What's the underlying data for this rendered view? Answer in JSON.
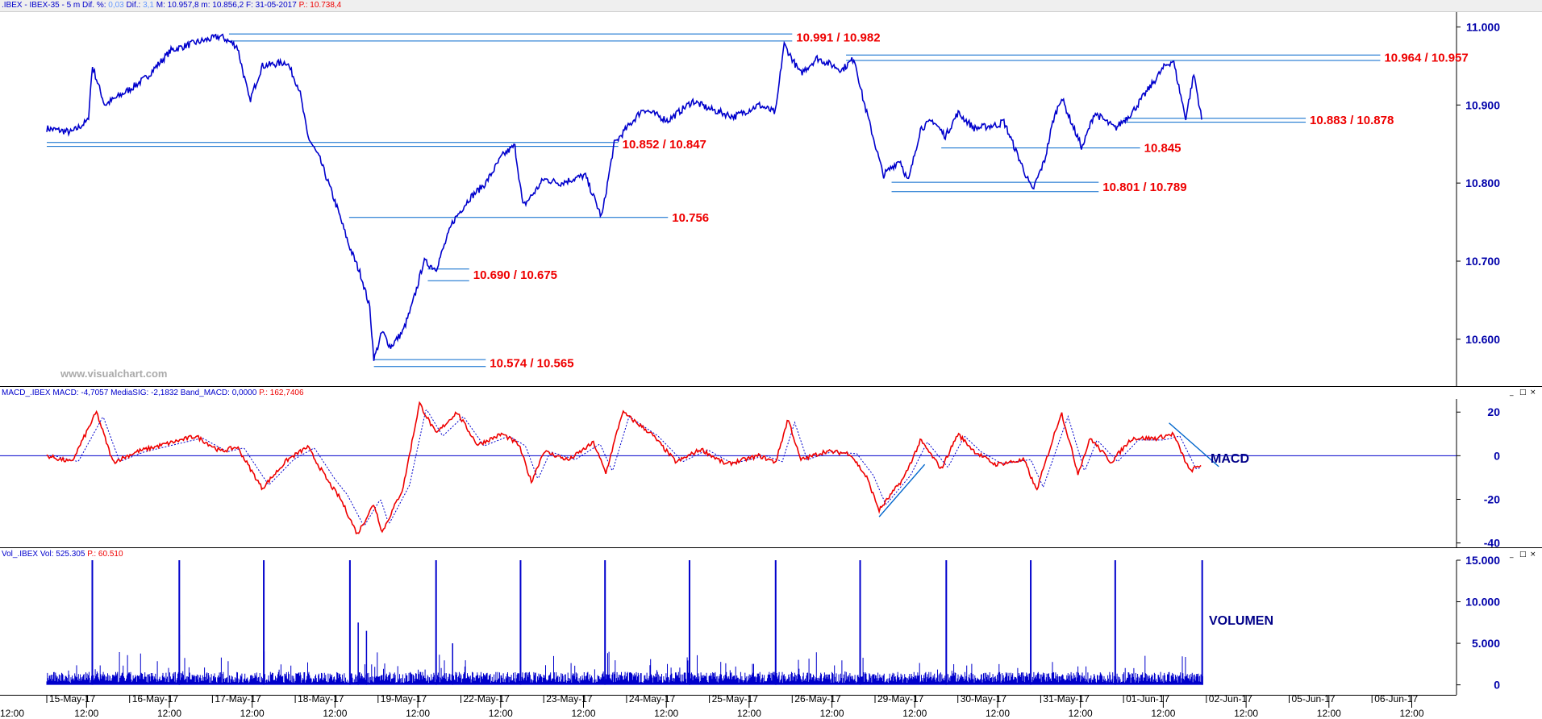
{
  "price_header": {
    "symbol": ".IBEX - IBEX-35 - 5 m",
    "dif_pct_label": "Dif. %:",
    "dif_pct_value": "0,03",
    "dif_label": "Dif.:",
    "dif_value": "3,1",
    "max_text": "M: 10.957,8",
    "min_text": "m: 10.856,2",
    "date_text": "F: 31-05-2017",
    "p_text": "P.: 10.738,4"
  },
  "macd_header": {
    "name": "MACD_.IBEX",
    "macd_text": "MACD: -4,7057",
    "signal_text": "MediaSIG: -2,1832",
    "band_text": "Band_MACD: 0,0000",
    "p_text": "P.: 162,7406"
  },
  "vol_header": {
    "name": "Vol_.IBEX",
    "vol_text": "Vol: 525.305",
    "p_text": "P.: 60.510"
  },
  "watermark": "www.visualchart.com",
  "panel_labels": {
    "macd": "MACD",
    "volume": "VOLUMEN"
  },
  "window_buttons": [
    "_",
    "□",
    "×"
  ],
  "colors": {
    "price": "#0000cc",
    "level_line": "#0066cc",
    "level_text": "#ee0000",
    "macd": "#ee0000",
    "signal": "#0000cc",
    "volume": "#0000cc",
    "axis_text": "#0000aa"
  },
  "chart_data": [
    {
      "type": "line",
      "panel": "price",
      "symbol": ".IBEX - IBEX-35",
      "interval": "5 m",
      "ylim": [
        10540,
        11020
      ],
      "yticks": [
        10600,
        10700,
        10800,
        10900,
        11000
      ],
      "ytick_labels": [
        "10.600",
        "10.700",
        "10.800",
        "10.900",
        "11.000"
      ],
      "grid": false,
      "keypoints": [
        {
          "t": 0,
          "y": 10870
        },
        {
          "t": 0.3,
          "y": 10865
        },
        {
          "t": 0.5,
          "y": 10880
        },
        {
          "t": 0.55,
          "y": 10950
        },
        {
          "t": 0.7,
          "y": 10900
        },
        {
          "t": 1.0,
          "y": 10920
        },
        {
          "t": 1.2,
          "y": 10935
        },
        {
          "t": 1.5,
          "y": 10970
        },
        {
          "t": 1.8,
          "y": 10980
        },
        {
          "t": 2.1,
          "y": 10988
        },
        {
          "t": 2.3,
          "y": 10975
        },
        {
          "t": 2.45,
          "y": 10905
        },
        {
          "t": 2.6,
          "y": 10950
        },
        {
          "t": 2.9,
          "y": 10955
        },
        {
          "t": 3.05,
          "y": 10920
        },
        {
          "t": 3.15,
          "y": 10860
        },
        {
          "t": 3.3,
          "y": 10830
        },
        {
          "t": 3.5,
          "y": 10770
        },
        {
          "t": 3.65,
          "y": 10720
        },
        {
          "t": 3.8,
          "y": 10680
        },
        {
          "t": 3.9,
          "y": 10640
        },
        {
          "t": 3.95,
          "y": 10574
        },
        {
          "t": 4.05,
          "y": 10610
        },
        {
          "t": 4.15,
          "y": 10590
        },
        {
          "t": 4.3,
          "y": 10610
        },
        {
          "t": 4.4,
          "y": 10640
        },
        {
          "t": 4.5,
          "y": 10678
        },
        {
          "t": 4.55,
          "y": 10700
        },
        {
          "t": 4.7,
          "y": 10690
        },
        {
          "t": 4.9,
          "y": 10750
        },
        {
          "t": 5.1,
          "y": 10780
        },
        {
          "t": 5.3,
          "y": 10800
        },
        {
          "t": 5.5,
          "y": 10835
        },
        {
          "t": 5.65,
          "y": 10848
        },
        {
          "t": 5.75,
          "y": 10770
        },
        {
          "t": 5.9,
          "y": 10790
        },
        {
          "t": 6.0,
          "y": 10805
        },
        {
          "t": 6.2,
          "y": 10800
        },
        {
          "t": 6.5,
          "y": 10810
        },
        {
          "t": 6.7,
          "y": 10756
        },
        {
          "t": 6.85,
          "y": 10850
        },
        {
          "t": 7.0,
          "y": 10870
        },
        {
          "t": 7.2,
          "y": 10895
        },
        {
          "t": 7.5,
          "y": 10880
        },
        {
          "t": 7.8,
          "y": 10905
        },
        {
          "t": 8.0,
          "y": 10895
        },
        {
          "t": 8.3,
          "y": 10885
        },
        {
          "t": 8.6,
          "y": 10900
        },
        {
          "t": 8.8,
          "y": 10890
        },
        {
          "t": 8.9,
          "y": 10978
        },
        {
          "t": 9.1,
          "y": 10940
        },
        {
          "t": 9.3,
          "y": 10960
        },
        {
          "t": 9.6,
          "y": 10945
        },
        {
          "t": 9.75,
          "y": 10960
        },
        {
          "t": 9.85,
          "y": 10910
        },
        {
          "t": 10.0,
          "y": 10850
        },
        {
          "t": 10.1,
          "y": 10810
        },
        {
          "t": 10.3,
          "y": 10830
        },
        {
          "t": 10.4,
          "y": 10801
        },
        {
          "t": 10.55,
          "y": 10870
        },
        {
          "t": 10.7,
          "y": 10880
        },
        {
          "t": 10.85,
          "y": 10860
        },
        {
          "t": 11.0,
          "y": 10890
        },
        {
          "t": 11.2,
          "y": 10870
        },
        {
          "t": 11.5,
          "y": 10875
        },
        {
          "t": 11.55,
          "y": 10880
        },
        {
          "t": 11.9,
          "y": 10790
        },
        {
          "t": 12.05,
          "y": 10830
        },
        {
          "t": 12.15,
          "y": 10880
        },
        {
          "t": 12.25,
          "y": 10910
        },
        {
          "t": 12.4,
          "y": 10870
        },
        {
          "t": 12.5,
          "y": 10845
        },
        {
          "t": 12.65,
          "y": 10890
        },
        {
          "t": 12.9,
          "y": 10870
        },
        {
          "t": 13.1,
          "y": 10890
        },
        {
          "t": 13.3,
          "y": 10920
        },
        {
          "t": 13.5,
          "y": 10950
        },
        {
          "t": 13.6,
          "y": 10957
        },
        {
          "t": 13.75,
          "y": 10883
        },
        {
          "t": 13.85,
          "y": 10940
        },
        {
          "t": 13.95,
          "y": 10878
        }
      ],
      "levels": [
        {
          "label": "10.991 / 10.982",
          "values": [
            10991,
            10982
          ],
          "t_from": 2.2,
          "t_to": 9.0
        },
        {
          "label": "10.964 / 10.957",
          "values": [
            10964,
            10957
          ],
          "t_from": 9.65,
          "t_to": 16.1
        },
        {
          "label": "10.852 / 10.847",
          "values": [
            10852,
            10847
          ],
          "t_from": 0.0,
          "t_to": 6.9
        },
        {
          "label": "10.883 / 10.878",
          "values": [
            10883,
            10878
          ],
          "t_from": 13.0,
          "t_to": 15.2
        },
        {
          "label": "10.845",
          "values": [
            10845
          ],
          "t_from": 10.8,
          "t_to": 13.2
        },
        {
          "label": "10.801 / 10.789",
          "values": [
            10801,
            10789
          ],
          "t_from": 10.2,
          "t_to": 12.7
        },
        {
          "label": "10.756",
          "values": [
            10756
          ],
          "t_from": 3.65,
          "t_to": 7.5
        },
        {
          "label": "10.690 / 10.675",
          "values": [
            10690,
            10675
          ],
          "t_from": 4.6,
          "t_to": 5.1
        },
        {
          "label": "10.574 / 10.565",
          "values": [
            10574,
            10565
          ],
          "t_from": 3.95,
          "t_to": 5.3
        }
      ]
    },
    {
      "type": "line",
      "panel": "macd",
      "ylim": [
        -42,
        26
      ],
      "yticks": [
        -40,
        -20,
        0,
        20
      ],
      "ytick_labels": [
        "-40",
        "-20",
        "0",
        "20"
      ],
      "band": 0,
      "series": [
        {
          "name": "MACD",
          "keypoints": [
            {
              "t": 0,
              "y": 0
            },
            {
              "t": 0.3,
              "y": -3
            },
            {
              "t": 0.6,
              "y": 20
            },
            {
              "t": 0.8,
              "y": -3
            },
            {
              "t": 1.1,
              "y": 2
            },
            {
              "t": 1.4,
              "y": 5
            },
            {
              "t": 1.8,
              "y": 9
            },
            {
              "t": 2.1,
              "y": 2
            },
            {
              "t": 2.3,
              "y": 4
            },
            {
              "t": 2.6,
              "y": -15
            },
            {
              "t": 2.9,
              "y": -2
            },
            {
              "t": 3.15,
              "y": 4
            },
            {
              "t": 3.4,
              "y": -12
            },
            {
              "t": 3.55,
              "y": -20
            },
            {
              "t": 3.75,
              "y": -36
            },
            {
              "t": 3.95,
              "y": -22
            },
            {
              "t": 4.05,
              "y": -35
            },
            {
              "t": 4.3,
              "y": -15
            },
            {
              "t": 4.5,
              "y": 24
            },
            {
              "t": 4.7,
              "y": 10
            },
            {
              "t": 4.95,
              "y": 20
            },
            {
              "t": 5.2,
              "y": 5
            },
            {
              "t": 5.5,
              "y": 10
            },
            {
              "t": 5.7,
              "y": 5
            },
            {
              "t": 5.85,
              "y": -12
            },
            {
              "t": 6.0,
              "y": 2
            },
            {
              "t": 6.3,
              "y": -2
            },
            {
              "t": 6.6,
              "y": 6
            },
            {
              "t": 6.75,
              "y": -8
            },
            {
              "t": 6.95,
              "y": 20
            },
            {
              "t": 7.3,
              "y": 10
            },
            {
              "t": 7.6,
              "y": -3
            },
            {
              "t": 7.9,
              "y": 3
            },
            {
              "t": 8.2,
              "y": -4
            },
            {
              "t": 8.6,
              "y": 0
            },
            {
              "t": 8.8,
              "y": -3
            },
            {
              "t": 8.95,
              "y": 17
            },
            {
              "t": 9.1,
              "y": -2
            },
            {
              "t": 9.4,
              "y": 2
            },
            {
              "t": 9.7,
              "y": 1
            },
            {
              "t": 9.9,
              "y": -10
            },
            {
              "t": 10.05,
              "y": -25
            },
            {
              "t": 10.35,
              "y": -10
            },
            {
              "t": 10.55,
              "y": 7
            },
            {
              "t": 10.8,
              "y": -6
            },
            {
              "t": 11.0,
              "y": 10
            },
            {
              "t": 11.2,
              "y": 2
            },
            {
              "t": 11.45,
              "y": -4
            },
            {
              "t": 11.8,
              "y": -2
            },
            {
              "t": 11.95,
              "y": -16
            },
            {
              "t": 12.25,
              "y": 20
            },
            {
              "t": 12.45,
              "y": -8
            },
            {
              "t": 12.6,
              "y": 8
            },
            {
              "t": 12.85,
              "y": -3
            },
            {
              "t": 13.1,
              "y": 8
            },
            {
              "t": 13.4,
              "y": 8
            },
            {
              "t": 13.6,
              "y": 10
            },
            {
              "t": 13.8,
              "y": -7
            },
            {
              "t": 13.95,
              "y": -4
            }
          ]
        },
        {
          "name": "MediaSIG",
          "lag": 0.08
        }
      ],
      "trendlines": [
        {
          "t1": 10.05,
          "y1": -28,
          "t2": 10.6,
          "y2": -4
        },
        {
          "t1": 13.55,
          "y1": 15,
          "t2": 14.15,
          "y2": -5
        }
      ]
    },
    {
      "type": "bar",
      "panel": "volume",
      "ylim": [
        -1200,
        15000
      ],
      "yticks": [
        0,
        5000,
        10000,
        15000
      ],
      "ytick_labels": [
        "0",
        "5.000",
        "10.000",
        "15.000"
      ],
      "spike_value": 15000,
      "spikes": [
        {
          "t": 0.55,
          "v": 15000
        },
        {
          "t": 1.6,
          "v": 15000
        },
        {
          "t": 2.62,
          "v": 15000
        },
        {
          "t": 3.66,
          "v": 15000
        },
        {
          "t": 4.7,
          "v": 15000
        },
        {
          "t": 5.72,
          "v": 15000
        },
        {
          "t": 6.74,
          "v": 15000
        },
        {
          "t": 7.76,
          "v": 15000
        },
        {
          "t": 8.8,
          "v": 15000
        },
        {
          "t": 9.82,
          "v": 15000
        },
        {
          "t": 10.86,
          "v": 15000
        },
        {
          "t": 11.88,
          "v": 15000
        },
        {
          "t": 12.9,
          "v": 15000
        },
        {
          "t": 13.95,
          "v": 15000
        }
      ],
      "secondary": [
        {
          "t": 1.6,
          "v": 6000
        },
        {
          "t": 3.76,
          "v": 7500
        },
        {
          "t": 3.86,
          "v": 6500
        },
        {
          "t": 4.9,
          "v": 5000
        }
      ],
      "baseline_volume": 1200
    }
  ],
  "x_axis": {
    "days": [
      {
        "label": "15-May-17",
        "t": 0
      },
      {
        "label": "16-May-17",
        "t": 1
      },
      {
        "label": "17-May-17",
        "t": 2
      },
      {
        "label": "18-May-17",
        "t": 3
      },
      {
        "label": "19-May-17",
        "t": 4
      },
      {
        "label": "22-May-17",
        "t": 5
      },
      {
        "label": "23-May-17",
        "t": 6
      },
      {
        "label": "24-May-17",
        "t": 7
      },
      {
        "label": "25-May-17",
        "t": 8
      },
      {
        "label": "26-May-17",
        "t": 9
      },
      {
        "label": "29-May-17",
        "t": 10
      },
      {
        "label": "30-May-17",
        "t": 11
      },
      {
        "label": "31-May-17",
        "t": 12
      },
      {
        "label": "01-Jun-17",
        "t": 13
      },
      {
        "label": "02-Jun-17",
        "t": 14
      },
      {
        "label": "05-Jun-17",
        "t": 15
      },
      {
        "label": "06-Jun-17",
        "t": 16
      }
    ],
    "noon_label": "12:00",
    "lead_label": "12:00"
  }
}
